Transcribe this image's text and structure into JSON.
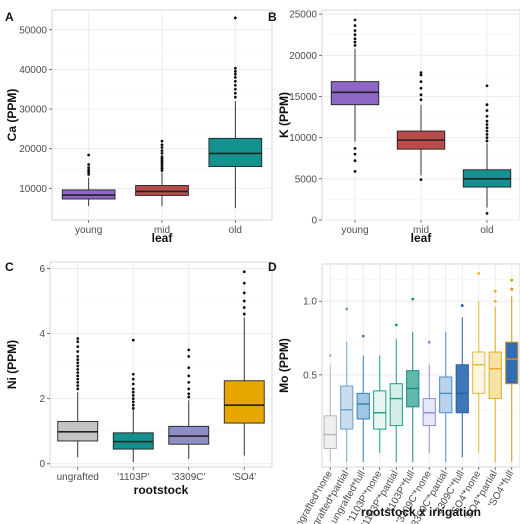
{
  "chart_data": [
    {
      "panel": "A",
      "type": "box",
      "xlabel": "leaf",
      "ylabel": "Ca (PPM)",
      "ylim": [
        2000,
        55000
      ],
      "yticks": [
        10000,
        20000,
        30000,
        40000,
        50000
      ],
      "yticklabels": [
        "10000",
        "20000",
        "30000",
        "40000",
        "50000"
      ],
      "categories": [
        "young",
        "mid",
        "old"
      ],
      "colors": [
        "#8e66c6",
        "#b94b4b",
        "#13918f"
      ],
      "boxes": [
        {
          "whislo": 5500,
          "q1": 7300,
          "med": 8300,
          "q3": 9600,
          "whishi": 12700,
          "fliers": [
            13500,
            14100,
            14600,
            15200,
            16000,
            18400
          ]
        },
        {
          "whislo": 5500,
          "q1": 8200,
          "med": 9200,
          "q3": 10700,
          "whishi": 14000,
          "fliers": [
            14500,
            15000,
            15500,
            16000,
            16500,
            17000,
            17500,
            18000,
            18800,
            19500,
            20300,
            21000,
            21900
          ]
        },
        {
          "whislo": 5000,
          "q1": 15500,
          "med": 18800,
          "q3": 22600,
          "whishi": 32000,
          "fliers": [
            33000,
            34000,
            35000,
            36000,
            37000,
            38000,
            38800,
            39500,
            40300,
            53000
          ]
        }
      ]
    },
    {
      "panel": "B",
      "type": "box",
      "xlabel": "leaf",
      "ylabel": "K (PPM)",
      "ylim": [
        0,
        25500
      ],
      "yticks": [
        0,
        5000,
        10000,
        15000,
        20000,
        25000
      ],
      "yticklabels": [
        "0",
        "5000",
        "10000",
        "15000",
        "20000",
        "25000"
      ],
      "categories": [
        "young",
        "mid",
        "old"
      ],
      "colors": [
        "#8e66c6",
        "#b94b4b",
        "#13918f"
      ],
      "boxes": [
        {
          "whislo": 9500,
          "q1": 14000,
          "med": 15500,
          "q3": 16800,
          "whishi": 20800,
          "fliers": [
            21200,
            21600,
            22000,
            22500,
            23000,
            23600,
            24300,
            8700,
            8000,
            7200,
            5900
          ]
        },
        {
          "whislo": 5400,
          "q1": 8600,
          "med": 9700,
          "q3": 10800,
          "whishi": 14000,
          "fliers": [
            14600,
            15200,
            16000,
            16800,
            17600,
            17900,
            4900
          ]
        },
        {
          "whislo": 1500,
          "q1": 4000,
          "med": 5000,
          "q3": 6100,
          "whishi": 9300,
          "fliers": [
            9600,
            10000,
            10400,
            10800,
            11200,
            11600,
            12000,
            12600,
            13300,
            14000,
            16300,
            800
          ]
        }
      ]
    },
    {
      "panel": "C",
      "type": "box",
      "xlabel": "rootstock",
      "ylabel": "Ni (PPM)",
      "ylim": [
        -0.1,
        6.2
      ],
      "yticks": [
        0,
        2,
        4,
        6
      ],
      "yticklabels": [
        "0",
        "2",
        "4",
        "6"
      ],
      "categories": [
        "ungrafted",
        "'1103P'",
        "'3309C'",
        "'SO4'"
      ],
      "colors": [
        "#c4c4c4",
        "#13918f",
        "#8e8ec6",
        "#e8a700"
      ],
      "boxes": [
        {
          "whislo": 0.2,
          "q1": 0.7,
          "med": 0.98,
          "q3": 1.3,
          "whishi": 2.2,
          "fliers": [
            2.3,
            2.4,
            2.5,
            2.6,
            2.7,
            2.8,
            2.9,
            3.0,
            3.1,
            3.2,
            3.3,
            3.45,
            3.6,
            3.75,
            3.85
          ]
        },
        {
          "whislo": 0.05,
          "q1": 0.45,
          "med": 0.68,
          "q3": 0.95,
          "whishi": 1.65,
          "fliers": [
            1.7,
            1.8,
            1.9,
            2.0,
            2.1,
            2.2,
            2.3,
            2.45,
            2.6,
            2.75,
            3.8
          ]
        },
        {
          "whislo": 0.15,
          "q1": 0.6,
          "med": 0.85,
          "q3": 1.15,
          "whishi": 1.95,
          "fliers": [
            2.05,
            2.15,
            2.3,
            2.5,
            2.7,
            2.95,
            3.3,
            3.5
          ]
        },
        {
          "whislo": 0.25,
          "q1": 1.25,
          "med": 1.8,
          "q3": 2.55,
          "whishi": 4.5,
          "fliers": [
            4.6,
            4.8,
            5.0,
            5.25,
            5.55,
            5.9
          ]
        }
      ]
    },
    {
      "panel": "D",
      "type": "box",
      "xlabel": "rootstock x irrigation",
      "ylabel": "Mo (PPM)",
      "scale": "log",
      "ylim": [
        0.21,
        1.42
      ],
      "yticks": [
        0.5,
        1.0
      ],
      "yticklabels": [
        "0.5",
        "1.0"
      ],
      "categories": [
        "ungrafted*none",
        "ungrafted*partial",
        "ungrafted*full",
        "'1103P'*none",
        "'1103P'*partial",
        "'1103P'*full",
        "'3309C'*none",
        "'3309C'*partial",
        "'3309C'*full",
        "'SO4'*none",
        "'SO4'*partial",
        "'SO4'*full"
      ],
      "edge_colors": [
        "#b6b6b6",
        "#6f9fc9",
        "#3c7fb5",
        "#19a089",
        "#19a089",
        "#178a7d",
        "#8a8fd0",
        "#4f88c4",
        "#2b5fa5",
        "#e6b830",
        "#e6a820",
        "#e08f10"
      ],
      "fill_colors": [
        "#f0f0f0",
        "#c7dcec",
        "#9fc6e2",
        "#e8f6f3",
        "#d4efe9",
        "#63b8ac",
        "#e7e8f7",
        "#b9d3ec",
        "#3f76b8",
        "#fdf5df",
        "#f7e2a6",
        "#2f6eb2"
      ],
      "boxes": [
        {
          "whislo": 0.22,
          "q1": 0.25,
          "med": 0.285,
          "q3": 0.34,
          "whishi": 0.55,
          "fliers": [
            0.6
          ]
        },
        {
          "whislo": 0.22,
          "q1": 0.3,
          "med": 0.36,
          "q3": 0.45,
          "whishi": 0.68,
          "fliers": [
            0.93
          ]
        },
        {
          "whislo": 0.22,
          "q1": 0.33,
          "med": 0.38,
          "q3": 0.42,
          "whishi": 0.6,
          "fliers": [
            0.72
          ]
        },
        {
          "whislo": 0.24,
          "q1": 0.3,
          "med": 0.35,
          "q3": 0.43,
          "whishi": 0.6,
          "fliers": []
        },
        {
          "whislo": 0.22,
          "q1": 0.31,
          "med": 0.4,
          "q3": 0.46,
          "whishi": 0.7,
          "fliers": [
            0.8
          ]
        },
        {
          "whislo": 0.22,
          "q1": 0.37,
          "med": 0.44,
          "q3": 0.52,
          "whishi": 0.75,
          "fliers": [
            1.02
          ]
        },
        {
          "whislo": 0.24,
          "q1": 0.31,
          "med": 0.35,
          "q3": 0.4,
          "whishi": 0.55,
          "fliers": [
            0.68
          ]
        },
        {
          "whislo": 0.22,
          "q1": 0.35,
          "med": 0.42,
          "q3": 0.49,
          "whishi": 0.75,
          "fliers": []
        },
        {
          "whislo": 0.23,
          "q1": 0.35,
          "med": 0.42,
          "q3": 0.55,
          "whishi": 0.86,
          "fliers": [
            0.96
          ]
        },
        {
          "whislo": 0.24,
          "q1": 0.42,
          "med": 0.55,
          "q3": 0.62,
          "whishi": 1.0,
          "fliers": [
            1.3
          ]
        },
        {
          "whislo": 0.22,
          "q1": 0.4,
          "med": 0.53,
          "q3": 0.62,
          "whishi": 0.95,
          "fliers": [
            1.0,
            1.1
          ]
        },
        {
          "whislo": 0.22,
          "q1": 0.46,
          "med": 0.58,
          "q3": 0.68,
          "whishi": 1.05,
          "fliers": [
            1.12,
            1.22
          ]
        }
      ]
    }
  ]
}
